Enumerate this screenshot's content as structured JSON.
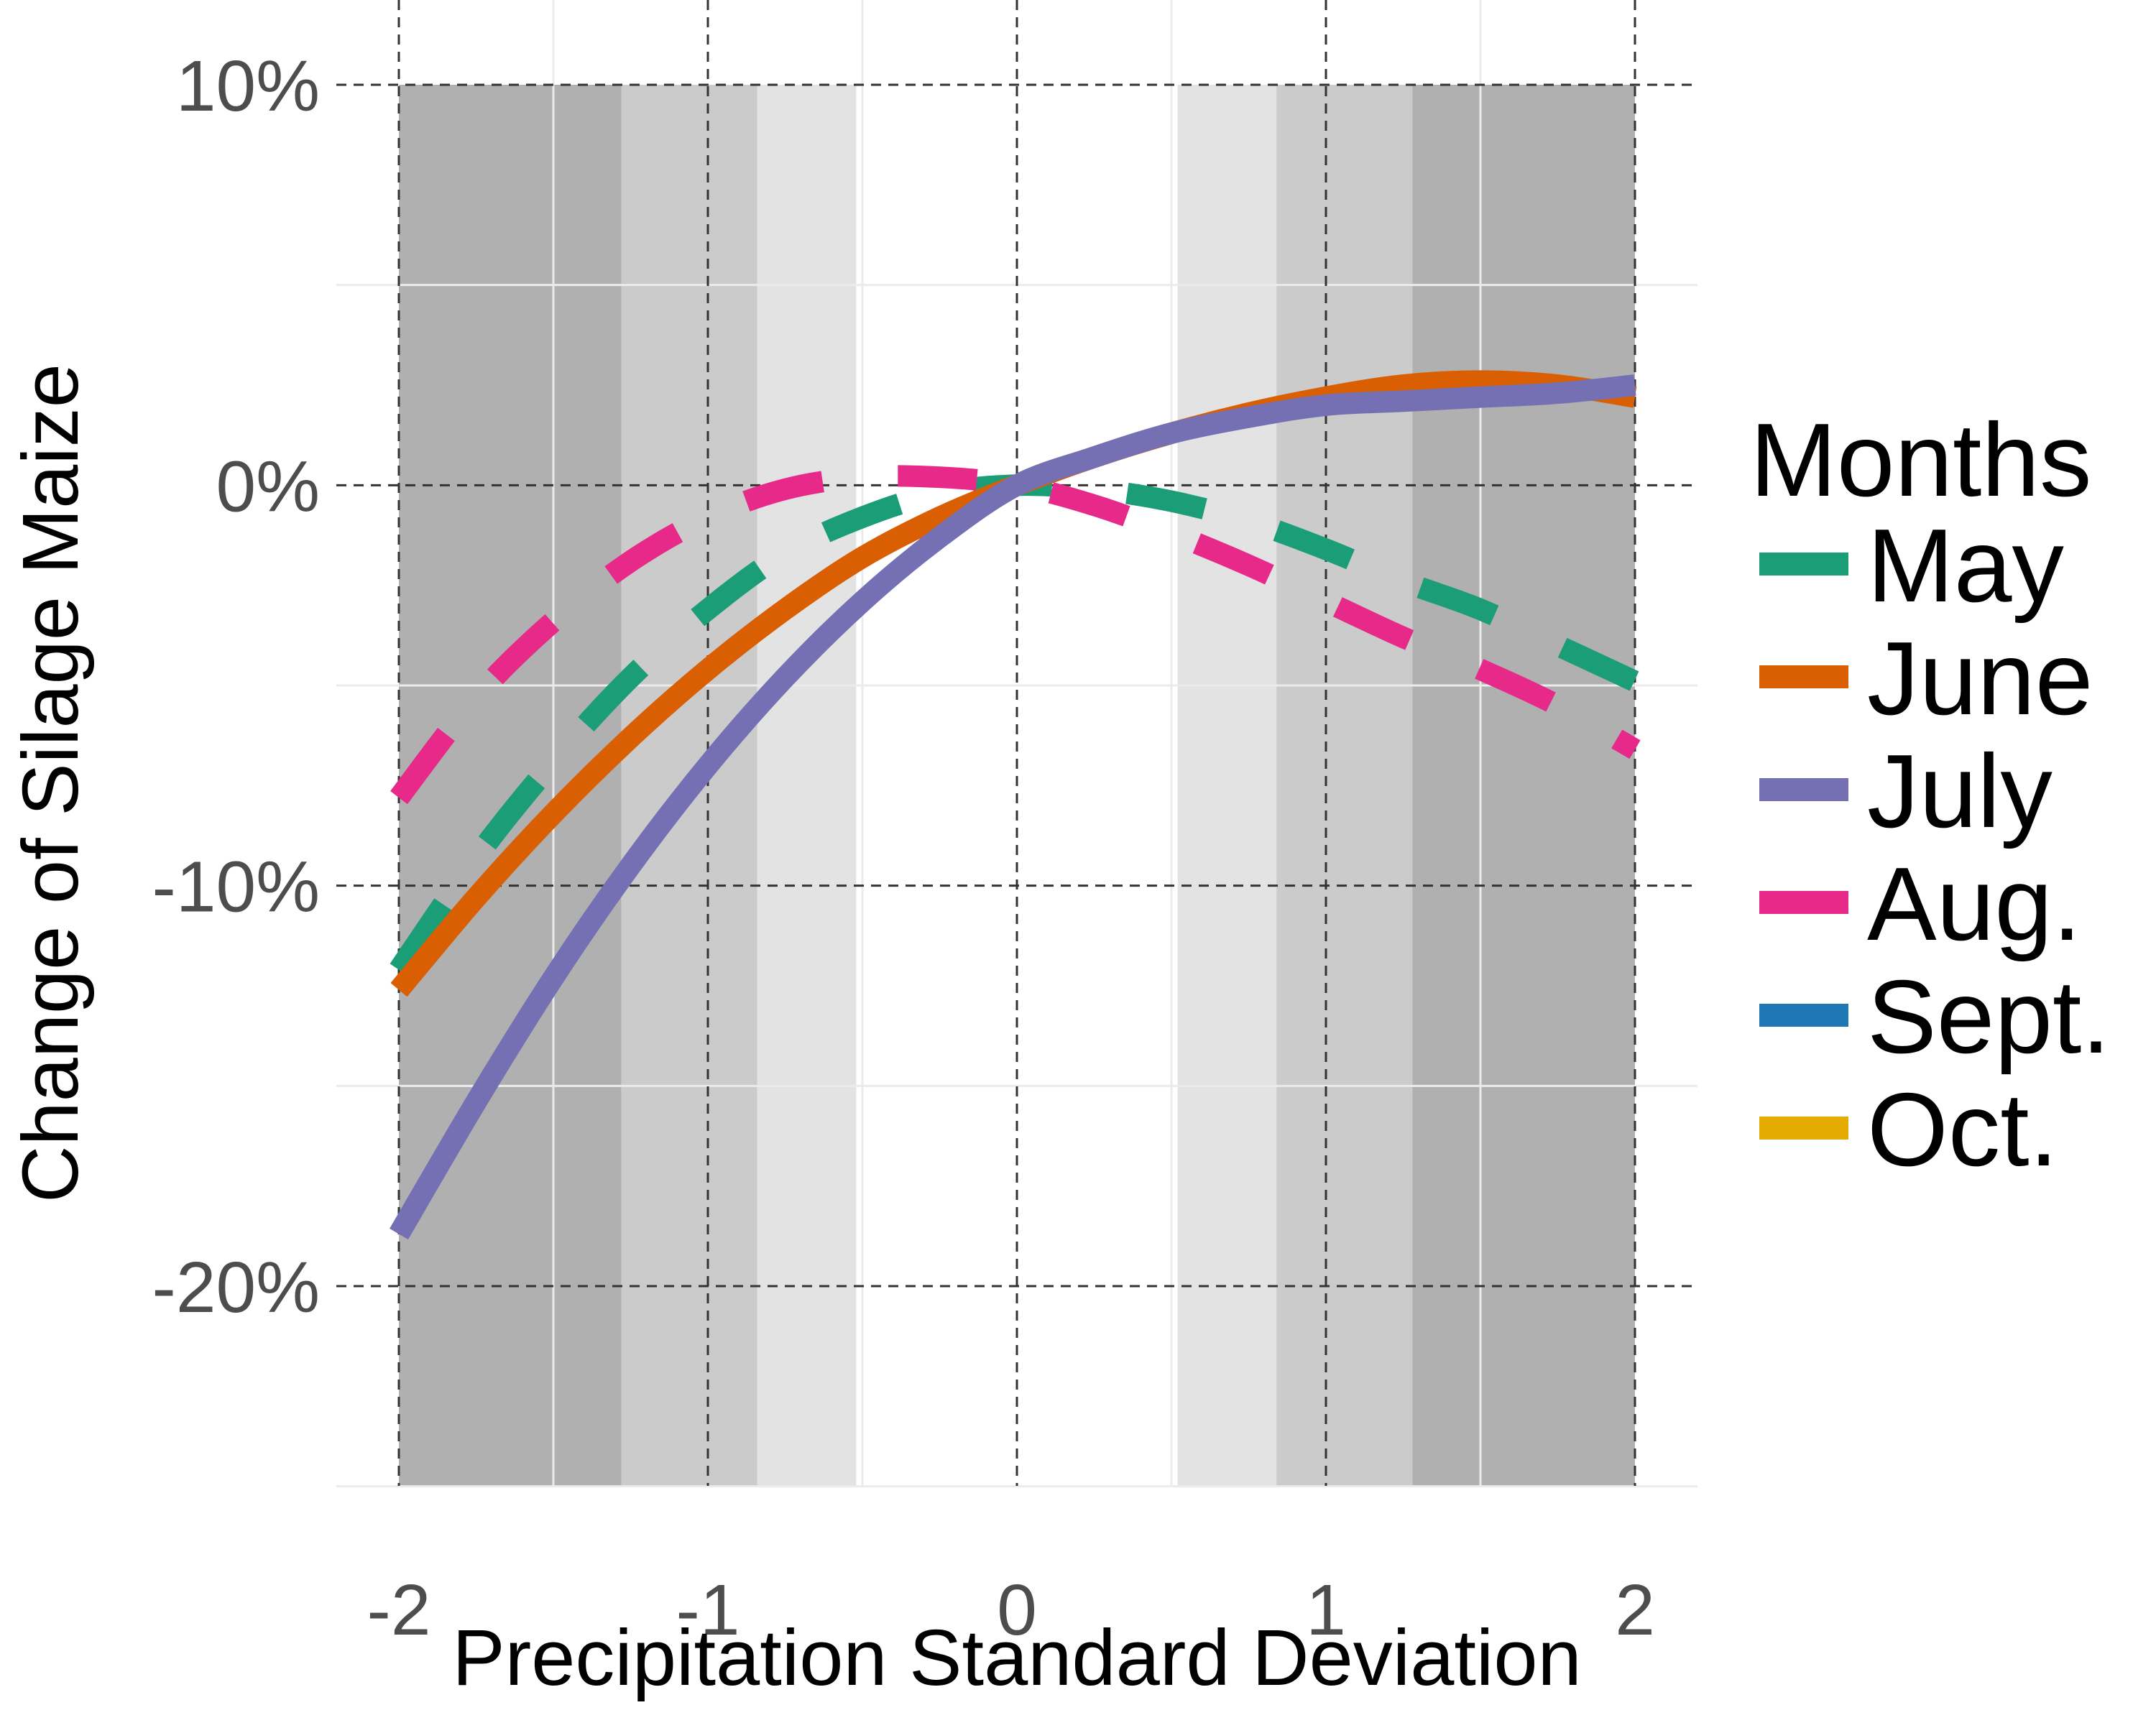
{
  "chart_data": {
    "type": "line",
    "xlabel": "Precipitation Standard Deviation",
    "ylabel": "Change of Silage Maize",
    "xlim": [
      -2.2,
      2.2
    ],
    "ylim": [
      -25,
      10
    ],
    "x_ticks": [
      -2,
      -1,
      0,
      1,
      2
    ],
    "x_tick_labels": [
      "-2",
      "-1",
      "0",
      "1",
      "2"
    ],
    "y_ticks": [
      10,
      0,
      -10,
      -20
    ],
    "y_tick_labels": [
      "10%",
      "0%",
      "-10%",
      "-20%"
    ],
    "grid": "dashed major grid",
    "shaded_bands": [
      {
        "x0": -2,
        "x1": -1.28,
        "color": "#b0b0b0"
      },
      {
        "x0": -1.28,
        "x1": -0.84,
        "color": "#cbcbcb"
      },
      {
        "x0": -0.84,
        "x1": -0.52,
        "color": "#e3e3e3"
      },
      {
        "x0": 0.52,
        "x1": 0.84,
        "color": "#e3e3e3"
      },
      {
        "x0": 0.84,
        "x1": 1.28,
        "color": "#cbcbcb"
      },
      {
        "x0": 1.28,
        "x1": 2,
        "color": "#b0b0b0"
      }
    ],
    "legend": {
      "title": "Months",
      "position": "right",
      "entries": [
        {
          "label": "May",
          "color": "#1b9e77"
        },
        {
          "label": "June",
          "color": "#d95f02"
        },
        {
          "label": "July",
          "color": "#7570b3"
        },
        {
          "label": "Aug.",
          "color": "#e7298a"
        },
        {
          "label": "Sept.",
          "color": "#1f78b4"
        },
        {
          "label": "Oct.",
          "color": "#e6ab02"
        }
      ]
    },
    "series": [
      {
        "name": "May",
        "color": "#1b9e77",
        "dashed": true,
        "x": [
          -2,
          -1.75,
          -1.5,
          -1.25,
          -1,
          -0.75,
          -0.5,
          -0.25,
          0,
          0.25,
          0.5,
          0.75,
          1,
          1.25,
          1.5,
          1.75,
          2
        ],
        "y": [
          -12.1,
          -9.3,
          -6.9,
          -4.8,
          -3.1,
          -1.7,
          -0.8,
          -0.2,
          0,
          -0.1,
          -0.4,
          -0.9,
          -1.6,
          -2.4,
          -3.1,
          -4.0,
          -4.9
        ]
      },
      {
        "name": "June",
        "color": "#d95f02",
        "dashed": false,
        "x": [
          -2,
          -1.75,
          -1.5,
          -1.25,
          -1,
          -0.75,
          -0.5,
          -0.25,
          0,
          0.25,
          0.5,
          0.75,
          1,
          1.25,
          1.5,
          1.75,
          2
        ],
        "y": [
          -12.6,
          -10.3,
          -8.2,
          -6.3,
          -4.6,
          -3.1,
          -1.8,
          -0.8,
          0,
          0.7,
          1.3,
          1.8,
          2.2,
          2.5,
          2.6,
          2.5,
          2.2
        ]
      },
      {
        "name": "July",
        "color": "#7570b3",
        "dashed": false,
        "x": [
          -2,
          -1.75,
          -1.5,
          -1.25,
          -1,
          -0.75,
          -0.5,
          -0.25,
          0,
          0.25,
          0.5,
          0.75,
          1,
          1.25,
          1.5,
          1.75,
          2
        ],
        "y": [
          -18.7,
          -15.4,
          -12.3,
          -9.5,
          -7.0,
          -4.8,
          -2.9,
          -1.3,
          0,
          0.7,
          1.3,
          1.7,
          2.0,
          2.1,
          2.2,
          2.3,
          2.5
        ]
      },
      {
        "name": "Aug.",
        "color": "#e7298a",
        "dashed": true,
        "x": [
          -2,
          -1.75,
          -1.5,
          -1.25,
          -1,
          -0.75,
          -0.5,
          -0.25,
          0,
          0.25,
          0.5,
          0.75,
          1,
          1.25,
          1.5,
          1.75,
          2
        ],
        "y": [
          -7.8,
          -5.3,
          -3.4,
          -1.9,
          -0.8,
          -0.1,
          0.2,
          0.2,
          0,
          -0.5,
          -1.2,
          -2.0,
          -2.9,
          -3.8,
          -4.6,
          -5.5,
          -6.6
        ]
      }
    ]
  }
}
